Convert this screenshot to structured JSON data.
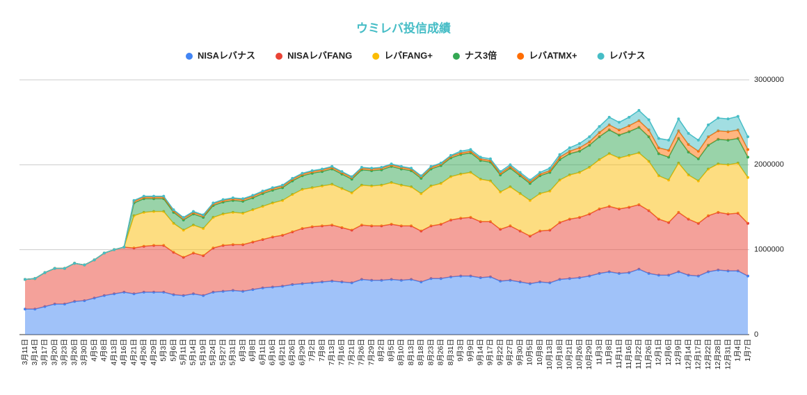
{
  "chart_data": {
    "type": "stacked_area",
    "title": "ウミレバ投信成績",
    "legend": "top",
    "grid": true,
    "categories": [
      "3月11日",
      "3月14日",
      "3月17日",
      "3月20日",
      "3月23日",
      "3月26日",
      "3月30日",
      "4月5日",
      "4月8日",
      "4月13日",
      "4月16日",
      "4月21日",
      "4月26日",
      "4月29日",
      "5月3日",
      "5月6日",
      "5月11日",
      "5月14日",
      "5月19日",
      "5月24日",
      "5月27日",
      "5月31日",
      "6月3日",
      "6月8日",
      "6月11日",
      "6月16日",
      "6月21日",
      "6月26日",
      "6月29日",
      "7月2日",
      "7月8日",
      "7月13日",
      "7月16日",
      "7月21日",
      "7月26日",
      "7月29日",
      "8月2日",
      "8月5日",
      "8月10日",
      "8月13日",
      "8月18日",
      "8月23日",
      "8月26日",
      "8月31日",
      "9月3日",
      "9月9日",
      "9月14日",
      "9月17日",
      "9月22日",
      "9月27日",
      "9月30日",
      "10月5日",
      "10月8日",
      "10月13日",
      "10月18日",
      "10月21日",
      "10月26日",
      "10月29日",
      "11月3日",
      "11月8日",
      "11月11日",
      "11月16日",
      "11月22日",
      "11月26日",
      "12月1日",
      "12月6日",
      "12月9日",
      "12月14日",
      "12月17日",
      "12月22日",
      "12月28日",
      "12月31日",
      "1月4日",
      "1月7日"
    ],
    "ylim": [
      0,
      3000000
    ],
    "yticks": [
      0,
      1000000,
      2000000,
      3000000
    ],
    "series": [
      {
        "name": "NISAレバナス",
        "color": "#4285f4",
        "values": [
          300000,
          300000,
          330000,
          360000,
          360000,
          390000,
          400000,
          430000,
          460000,
          480000,
          500000,
          480000,
          500000,
          500000,
          500000,
          470000,
          460000,
          480000,
          460000,
          500000,
          510000,
          520000,
          510000,
          530000,
          550000,
          560000,
          570000,
          590000,
          600000,
          610000,
          620000,
          630000,
          620000,
          610000,
          650000,
          640000,
          640000,
          650000,
          640000,
          650000,
          620000,
          660000,
          660000,
          680000,
          690000,
          690000,
          670000,
          680000,
          630000,
          640000,
          620000,
          600000,
          620000,
          610000,
          650000,
          660000,
          670000,
          690000,
          720000,
          740000,
          720000,
          730000,
          770000,
          720000,
          700000,
          700000,
          740000,
          700000,
          690000,
          740000,
          760000,
          750000,
          750000,
          690000
        ]
      },
      {
        "name": "NISAレバFANG",
        "color": "#ea4335",
        "values": [
          350000,
          360000,
          400000,
          420000,
          420000,
          450000,
          420000,
          450000,
          500000,
          520000,
          530000,
          540000,
          540000,
          550000,
          550000,
          500000,
          450000,
          480000,
          470000,
          520000,
          540000,
          540000,
          550000,
          560000,
          570000,
          590000,
          600000,
          620000,
          650000,
          660000,
          660000,
          660000,
          640000,
          620000,
          640000,
          640000,
          640000,
          650000,
          640000,
          630000,
          600000,
          620000,
          640000,
          670000,
          680000,
          690000,
          660000,
          650000,
          610000,
          640000,
          600000,
          560000,
          600000,
          620000,
          670000,
          700000,
          710000,
          730000,
          760000,
          770000,
          760000,
          770000,
          760000,
          740000,
          660000,
          620000,
          700000,
          660000,
          620000,
          660000,
          680000,
          670000,
          680000,
          620000
        ]
      },
      {
        "name": "レバFANG+",
        "color": "#fbbc04",
        "values": [
          0,
          0,
          0,
          0,
          0,
          0,
          0,
          0,
          0,
          0,
          0,
          380000,
          400000,
          400000,
          400000,
          340000,
          320000,
          330000,
          320000,
          360000,
          370000,
          380000,
          370000,
          380000,
          390000,
          400000,
          410000,
          440000,
          460000,
          460000,
          470000,
          480000,
          460000,
          440000,
          470000,
          470000,
          480000,
          490000,
          480000,
          460000,
          440000,
          470000,
          480000,
          510000,
          520000,
          530000,
          500000,
          480000,
          440000,
          460000,
          440000,
          420000,
          440000,
          460000,
          500000,
          520000,
          530000,
          550000,
          580000,
          620000,
          600000,
          610000,
          610000,
          580000,
          510000,
          500000,
          580000,
          520000,
          500000,
          550000,
          570000,
          580000,
          590000,
          540000
        ]
      },
      {
        "name": "ナス3倍",
        "color": "#34a853",
        "values": [
          0,
          0,
          0,
          0,
          0,
          0,
          0,
          0,
          0,
          0,
          0,
          150000,
          160000,
          150000,
          150000,
          130000,
          120000,
          130000,
          130000,
          140000,
          140000,
          140000,
          140000,
          140000,
          150000,
          150000,
          150000,
          160000,
          160000,
          170000,
          170000,
          180000,
          170000,
          160000,
          180000,
          180000,
          180000,
          190000,
          190000,
          190000,
          180000,
          200000,
          210000,
          220000,
          230000,
          230000,
          220000,
          220000,
          200000,
          220000,
          210000,
          200000,
          210000,
          220000,
          240000,
          250000,
          250000,
          260000,
          270000,
          280000,
          270000,
          280000,
          300000,
          290000,
          260000,
          270000,
          290000,
          270000,
          260000,
          280000,
          290000,
          290000,
          290000,
          240000
        ]
      },
      {
        "name": "レバATMX+",
        "color": "#ff6d01",
        "values": [
          0,
          0,
          0,
          0,
          0,
          0,
          0,
          0,
          0,
          0,
          0,
          20000,
          20000,
          20000,
          20000,
          20000,
          20000,
          20000,
          20000,
          20000,
          20000,
          20000,
          20000,
          20000,
          20000,
          20000,
          20000,
          20000,
          20000,
          20000,
          20000,
          20000,
          20000,
          20000,
          20000,
          20000,
          20000,
          20000,
          20000,
          20000,
          20000,
          20000,
          20000,
          20000,
          20000,
          20000,
          20000,
          20000,
          20000,
          20000,
          20000,
          20000,
          20000,
          20000,
          30000,
          30000,
          40000,
          40000,
          50000,
          60000,
          60000,
          70000,
          80000,
          80000,
          70000,
          80000,
          90000,
          90000,
          90000,
          100000,
          100000,
          100000,
          100000,
          90000
        ]
      },
      {
        "name": "レバナス",
        "color": "#46bdc6",
        "values": [
          0,
          0,
          0,
          0,
          0,
          0,
          0,
          0,
          0,
          0,
          0,
          10000,
          10000,
          10000,
          10000,
          10000,
          10000,
          10000,
          10000,
          10000,
          10000,
          10000,
          10000,
          10000,
          10000,
          10000,
          10000,
          10000,
          10000,
          10000,
          10000,
          10000,
          10000,
          10000,
          10000,
          10000,
          10000,
          10000,
          10000,
          10000,
          10000,
          10000,
          10000,
          10000,
          20000,
          20000,
          20000,
          20000,
          20000,
          20000,
          20000,
          20000,
          20000,
          30000,
          30000,
          40000,
          50000,
          60000,
          70000,
          90000,
          90000,
          100000,
          120000,
          120000,
          110000,
          120000,
          140000,
          130000,
          130000,
          140000,
          150000,
          150000,
          160000,
          150000
        ]
      }
    ]
  }
}
